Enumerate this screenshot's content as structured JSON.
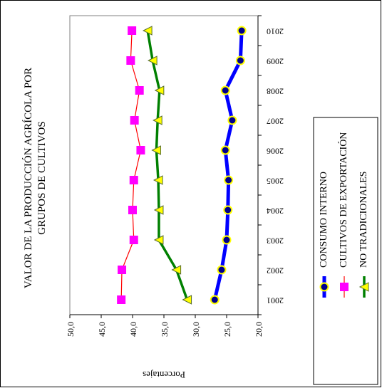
{
  "chart_data": {
    "type": "line",
    "orientation": "rotated-90-clockwise",
    "title_line1": "VALOR DE LA PRODUCCIÓN AGRÍCOLA POR",
    "title_line2": "GRUPOS DE CULTIVOS",
    "ylabel": "Porcentajes",
    "xlabel": "",
    "categories": [
      "2001",
      "2002",
      "2003",
      "2004",
      "2005",
      "2006",
      "2007",
      "2008",
      "2009",
      "2010"
    ],
    "ylim": [
      20,
      50
    ],
    "yticks": [
      "20,0",
      "25,0",
      "30,0",
      "35,0",
      "40,0",
      "45,0",
      "50,0"
    ],
    "grid": false,
    "legend_position": "bottom",
    "series": [
      {
        "name": "CONSUMO INTERNO",
        "color": "#0000ff",
        "marker": "circle",
        "marker_fill": "#00008b",
        "marker_edge": "#ffff00",
        "values": [
          26.9,
          25.8,
          25.0,
          24.8,
          24.7,
          25.2,
          24.1,
          25.2,
          22.8,
          22.6
        ]
      },
      {
        "name": "CULTIVOS DE EXPORTACIÓN",
        "color": "#ff0000",
        "marker": "square",
        "marker_fill": "#ff00ff",
        "values": [
          41.8,
          41.7,
          39.8,
          40.0,
          39.8,
          38.7,
          39.7,
          38.9,
          40.3,
          40.1
        ]
      },
      {
        "name": "NO TRADICIONALES",
        "color": "#008000",
        "marker": "triangle",
        "marker_fill": "#ffff00",
        "values": [
          31.3,
          33.0,
          35.8,
          35.8,
          35.9,
          36.2,
          36.0,
          35.7,
          36.8,
          37.6
        ]
      }
    ]
  }
}
